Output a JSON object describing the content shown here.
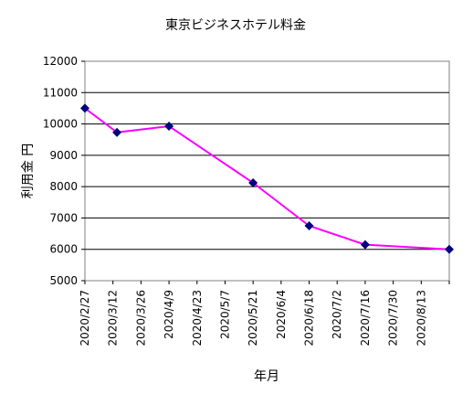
{
  "chart_data": {
    "type": "line",
    "title": "東京ビジネスホテル料金",
    "xlabel": "年月",
    "ylabel": "利用金 円",
    "ylim": [
      5000,
      12000
    ],
    "yticks": [
      5000,
      6000,
      7000,
      8000,
      9000,
      10000,
      11000,
      12000
    ],
    "grid": "horizontal",
    "x_ticks": [
      "2020/2/27",
      "2020/3/12",
      "2020/3/26",
      "2020/4/9",
      "2020/4/23",
      "2020/5/7",
      "2020/5/21",
      "2020/6/4",
      "2020/6/18",
      "2020/7/2",
      "2020/7/16",
      "2020/7/30",
      "2020/8/13"
    ],
    "x_range": [
      "2020/2/27",
      "2020/8/27"
    ],
    "series": [
      {
        "color": "#ff00ff",
        "marker_color": "#000080",
        "points": [
          {
            "x": "2020/2/27",
            "y": 10500
          },
          {
            "x": "2020/3/14",
            "y": 9730
          },
          {
            "x": "2020/4/9",
            "y": 9930
          },
          {
            "x": "2020/5/21",
            "y": 8120
          },
          {
            "x": "2020/6/18",
            "y": 6750
          },
          {
            "x": "2020/7/16",
            "y": 6150
          },
          {
            "x": "2020/8/27",
            "y": 6000
          }
        ]
      }
    ]
  }
}
